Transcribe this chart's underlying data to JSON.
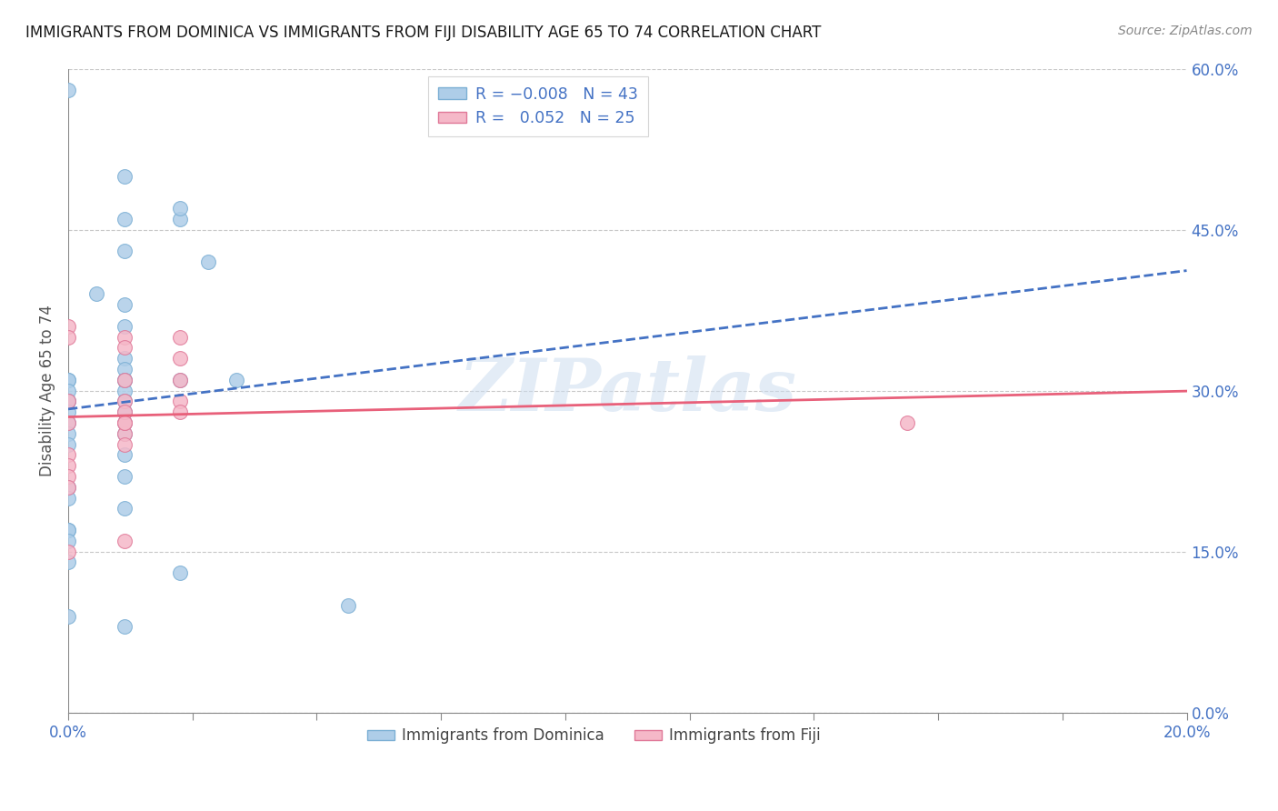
{
  "title": "IMMIGRANTS FROM DOMINICA VS IMMIGRANTS FROM FIJI DISABILITY AGE 65 TO 74 CORRELATION CHART",
  "source": "Source: ZipAtlas.com",
  "xlim": [
    0.0,
    0.2
  ],
  "ylim": [
    0.0,
    0.6
  ],
  "ylabel_label": "Disability Age 65 to 74",
  "dominica_color": "#aecde8",
  "dominica_edge_color": "#7bafd4",
  "fiji_color": "#f5b8c8",
  "fiji_edge_color": "#e07898",
  "dominica_R": -0.008,
  "dominica_N": 43,
  "fiji_R": 0.052,
  "fiji_N": 25,
  "dominica_x": [
    0.0,
    0.01,
    0.01,
    0.02,
    0.01,
    0.02,
    0.025,
    0.005,
    0.01,
    0.01,
    0.01,
    0.01,
    0.02,
    0.0,
    0.01,
    0.0,
    0.0,
    0.01,
    0.01,
    0.0,
    0.0,
    0.0,
    0.01,
    0.01,
    0.0,
    0.0,
    0.01,
    0.0,
    0.01,
    0.01,
    0.0,
    0.0,
    0.01,
    0.0,
    0.0,
    0.0,
    0.0,
    0.05,
    0.02,
    0.0,
    0.01,
    0.01,
    0.03
  ],
  "dominica_y": [
    0.58,
    0.5,
    0.43,
    0.46,
    0.46,
    0.47,
    0.42,
    0.39,
    0.36,
    0.38,
    0.33,
    0.32,
    0.31,
    0.31,
    0.31,
    0.31,
    0.3,
    0.3,
    0.29,
    0.29,
    0.29,
    0.28,
    0.28,
    0.27,
    0.27,
    0.26,
    0.26,
    0.25,
    0.24,
    0.22,
    0.21,
    0.2,
    0.19,
    0.17,
    0.17,
    0.16,
    0.14,
    0.1,
    0.13,
    0.09,
    0.08,
    0.31,
    0.31
  ],
  "fiji_x": [
    0.0,
    0.0,
    0.0,
    0.01,
    0.01,
    0.01,
    0.01,
    0.02,
    0.02,
    0.02,
    0.02,
    0.0,
    0.01,
    0.01,
    0.0,
    0.0,
    0.01,
    0.0,
    0.01,
    0.02,
    0.01,
    0.01,
    0.0,
    0.0,
    0.15
  ],
  "fiji_y": [
    0.36,
    0.35,
    0.29,
    0.35,
    0.34,
    0.31,
    0.29,
    0.35,
    0.33,
    0.31,
    0.29,
    0.27,
    0.26,
    0.25,
    0.24,
    0.23,
    0.16,
    0.15,
    0.27,
    0.28,
    0.28,
    0.27,
    0.22,
    0.21,
    0.27
  ],
  "dominica_line_color": "#4472c4",
  "fiji_line_color": "#e8607a",
  "watermark": "ZIPatlas",
  "bg_color": "#ffffff",
  "grid_color": "#c8c8c8",
  "tick_color": "#888888",
  "label_color": "#4472c4"
}
